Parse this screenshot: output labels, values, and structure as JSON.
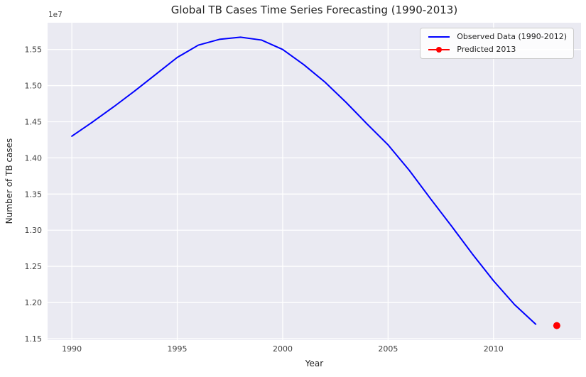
{
  "chart_data": {
    "type": "line",
    "title": "Global TB Cases Time Series Forecasting (1990-2013)",
    "xlabel": "Year",
    "ylabel": "Number of TB cases",
    "y_offset_label": "1e7",
    "grid": true,
    "plot_bg": "#eaeaf2",
    "grid_color": "#ffffff",
    "legend_position": "upper right",
    "xlim": [
      1988.85,
      2014.15
    ],
    "ylim": [
      11480000,
      15870000
    ],
    "x_ticks": [
      {
        "v": 1990,
        "label": "1990"
      },
      {
        "v": 1995,
        "label": "1995"
      },
      {
        "v": 2000,
        "label": "2000"
      },
      {
        "v": 2005,
        "label": "2005"
      },
      {
        "v": 2010,
        "label": "2010"
      }
    ],
    "y_ticks": [
      {
        "v": 11500000,
        "label": "1.15"
      },
      {
        "v": 12000000,
        "label": "1.20"
      },
      {
        "v": 12500000,
        "label": "1.25"
      },
      {
        "v": 13000000,
        "label": "1.30"
      },
      {
        "v": 13500000,
        "label": "1.35"
      },
      {
        "v": 14000000,
        "label": "1.40"
      },
      {
        "v": 14500000,
        "label": "1.45"
      },
      {
        "v": 15000000,
        "label": "1.50"
      },
      {
        "v": 15500000,
        "label": "1.55"
      }
    ],
    "series": [
      {
        "name": "Observed Data (1990-2012)",
        "color": "#0000ff",
        "style": "line",
        "x": [
          1990,
          1991,
          1992,
          1993,
          1994,
          1995,
          1996,
          1997,
          1998,
          1999,
          2000,
          2001,
          2002,
          2003,
          2004,
          2005,
          2006,
          2007,
          2008,
          2009,
          2010,
          2011,
          2012
        ],
        "y": [
          14300000,
          14500000,
          14710000,
          14930000,
          15160000,
          15390000,
          15560000,
          15640000,
          15670000,
          15630000,
          15500000,
          15290000,
          15050000,
          14770000,
          14470000,
          14180000,
          13830000,
          13440000,
          13060000,
          12670000,
          12300000,
          11970000,
          11700000
        ]
      },
      {
        "name": "Predicted 2013",
        "color": "#ff0000",
        "style": "point",
        "x": [
          2013
        ],
        "y": [
          11680000
        ]
      }
    ]
  }
}
